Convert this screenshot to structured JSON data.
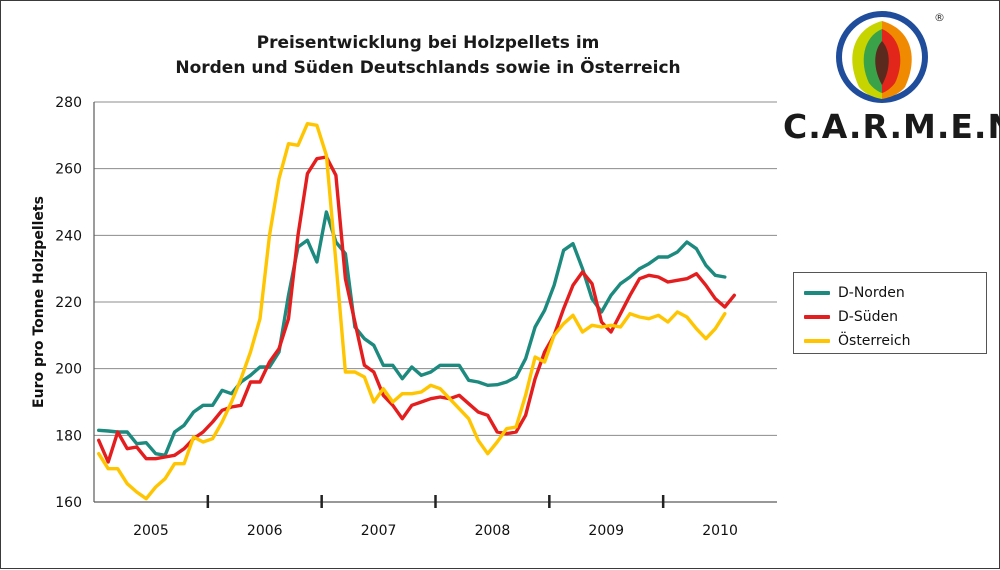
{
  "chart_data": {
    "type": "line",
    "title": [
      "Preisentwicklung bei Holzpellets im",
      "Norden und Süden Deutschlands sowie in Österreich"
    ],
    "xlabel": "",
    "ylabel": "Euro pro Tonne Holzpellets",
    "ylim": [
      160,
      280
    ],
    "yticks": [
      160,
      180,
      200,
      220,
      240,
      260,
      280
    ],
    "xlim": [
      0,
      72
    ],
    "x_start": "2004-07",
    "year_labels": [
      {
        "label": "2005",
        "x": 6
      },
      {
        "label": "2006",
        "x": 18
      },
      {
        "label": "2007",
        "x": 30
      },
      {
        "label": "2008",
        "x": 42
      },
      {
        "label": "2009",
        "x": 54
      },
      {
        "label": "2010",
        "x": 66
      }
    ],
    "major_ticks": [
      12,
      24,
      36,
      48,
      60
    ],
    "grid": "horizontal",
    "legend_position": "right",
    "series": [
      {
        "name": "D-Norden",
        "color": "#1c8a7e",
        "values": [
          181.5,
          181.3,
          181.0,
          181.0,
          177.5,
          177.8,
          174.5,
          174.0,
          181.0,
          183.0,
          187.0,
          189.0,
          189.0,
          193.5,
          192.5,
          196.0,
          198.0,
          200.5,
          200.5,
          205.0,
          222.0,
          236.5,
          238.5,
          232.0,
          247.0,
          238.0,
          234.5,
          212.5,
          209.0,
          207.0,
          201.0,
          201.0,
          197.0,
          200.5,
          198.0,
          199.0,
          201.0,
          201.0,
          201.0,
          196.5,
          196.0,
          195.0,
          195.2,
          196.0,
          197.5,
          203.0,
          212.5,
          217.5,
          225.0,
          235.5,
          237.5,
          230.0,
          221.0,
          217.0,
          222.0,
          225.5,
          227.5,
          230.0,
          231.5,
          233.5,
          233.5,
          235.0,
          238.0,
          236.0,
          231.0,
          228.0,
          227.5
        ]
      },
      {
        "name": "D-Süden",
        "color": "#e41e1e",
        "values": [
          178.5,
          172.0,
          181.0,
          176.0,
          176.5,
          173.0,
          173.0,
          173.5,
          174.0,
          176.0,
          179.0,
          181.0,
          184.0,
          187.5,
          188.5,
          189.0,
          196.0,
          196.0,
          202.0,
          206.0,
          215.0,
          240.0,
          258.5,
          263.0,
          263.5,
          258.0,
          227.0,
          214.0,
          201.0,
          199.0,
          192.0,
          189.0,
          185.0,
          189.0,
          190.0,
          191.0,
          191.5,
          191.0,
          192.0,
          189.5,
          187.0,
          186.0,
          181.0,
          180.5,
          181.0,
          186.0,
          197.0,
          205.0,
          210.0,
          218.0,
          225.0,
          229.0,
          225.5,
          214.0,
          211.0,
          216.5,
          222.0,
          227.0,
          228.0,
          227.5,
          226.0,
          226.5,
          227.0,
          228.5,
          225.0,
          221.0,
          218.5,
          222.0
        ]
      },
      {
        "name": "Österreich",
        "color": "#ffc500",
        "values": [
          174.5,
          170.0,
          170.0,
          165.5,
          163.0,
          161.0,
          164.5,
          167.0,
          171.5,
          171.5,
          179.5,
          178.0,
          179.0,
          184.0,
          190.0,
          197.0,
          205.0,
          215.0,
          240.0,
          257.0,
          267.5,
          267.0,
          273.5,
          273.0,
          264.0,
          232.0,
          199.0,
          199.0,
          197.5,
          190.0,
          194.0,
          190.0,
          192.5,
          192.5,
          193.0,
          195.0,
          194.0,
          191.0,
          188.0,
          185.0,
          178.5,
          174.5,
          178.0,
          182.0,
          182.5,
          192.0,
          203.5,
          202.0,
          210.0,
          213.5,
          216.0,
          211.0,
          213.0,
          212.5,
          213.0,
          212.5,
          216.5,
          215.5,
          215.0,
          216.0,
          214.0,
          217.0,
          215.5,
          212.0,
          209.0,
          212.0,
          216.5
        ]
      }
    ]
  },
  "logo": {
    "name": "C.A.R.M.E.N.",
    "registered": "®"
  }
}
